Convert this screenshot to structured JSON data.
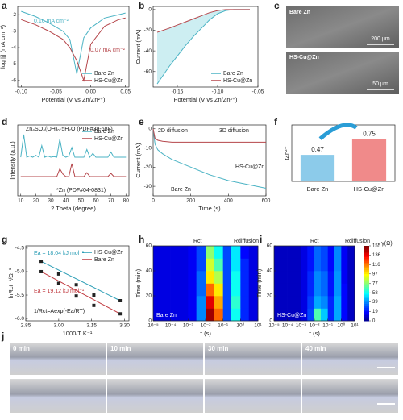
{
  "panel_labels": [
    "a",
    "b",
    "c",
    "d",
    "e",
    "f",
    "g",
    "h",
    "i",
    "j"
  ],
  "images": {
    "c": [
      {
        "label": "Bare Zn",
        "scale": "200 μm"
      },
      {
        "label": "HS-Cu@Zn",
        "scale": "50 μm"
      }
    ],
    "j": [
      "0 min",
      "10 min",
      "30 min",
      "40 min"
    ]
  },
  "chart_data": [
    {
      "type": "line",
      "xlabel": "Potential (V vs Zn/Zn²⁺)",
      "ylabel": "log |j| (mA cm⁻²)",
      "x": [
        -0.1,
        -0.08,
        -0.06,
        -0.04,
        -0.03,
        -0.02,
        -0.01,
        0.0,
        0.02,
        0.04,
        0.05
      ],
      "series": [
        {
          "name": "Bare Zn",
          "color": "#4bb3c4",
          "values": [
            -1.8,
            -2.1,
            -2.5,
            -3.0,
            -3.5,
            -5.6,
            -3.4,
            -2.8,
            -2.2,
            -2.0,
            -1.9
          ]
        },
        {
          "name": "HS-Cu@Zn",
          "color": "#b5454a",
          "values": [
            -2.3,
            -2.6,
            -3.0,
            -3.5,
            -4.0,
            -4.8,
            -6.0,
            -3.8,
            -2.7,
            -2.3,
            -2.2
          ]
        }
      ],
      "xlim": [
        -0.105,
        0.055
      ],
      "xticks": [
        {
          "value": -0.1,
          "label": "-0.10"
        },
        -0.05,
        {
          "value": 0,
          "label": "0.00"
        },
        0.05
      ],
      "ylim": [
        -6.4,
        -1.5
      ],
      "yticks": [
        -6,
        -5,
        -4,
        -3,
        -2
      ],
      "legend": "lower right",
      "annotations": [
        {
          "text": "0.16 mA cm⁻²",
          "color": "#4bb3c4"
        },
        {
          "text": "0.07 mA cm⁻²",
          "color": "#b5454a"
        }
      ]
    },
    {
      "type": "line",
      "xlabel": "Potential (V vs Zn/Zn²⁺)",
      "ylabel": "Current (mA)",
      "x": [
        -0.175,
        -0.16,
        -0.15,
        -0.14,
        -0.13,
        -0.12,
        -0.11,
        -0.1,
        -0.09,
        -0.08,
        -0.07,
        -0.06
      ],
      "series": [
        {
          "name": "Bare Zn",
          "color": "#4bb3c4",
          "values": [
            -72,
            -55,
            -45,
            -35,
            -26,
            -18,
            -10,
            -4,
            -1,
            0,
            0,
            0
          ]
        },
        {
          "name": "HS-Cu@Zn",
          "color": "#b5454a",
          "values": [
            -22,
            -18,
            -15,
            -12,
            -9,
            -6,
            -3,
            -1,
            0,
            0,
            0,
            0
          ]
        }
      ],
      "fill_between": "#cdeef2",
      "xlim": [
        -0.18,
        -0.05
      ],
      "xticks": [
        -0.15,
        {
          "value": -0.1,
          "label": "-0.10"
        },
        -0.05
      ],
      "ylim": [
        -75,
        3
      ],
      "yticks": [
        -60,
        -40,
        -20,
        0
      ],
      "legend": "lower right"
    },
    {
      "type": "line",
      "xlabel": "2 Theta (degree)",
      "ylabel": "Intensity (a.u.)",
      "x": [
        10,
        12,
        14,
        16,
        18,
        20,
        22,
        24,
        26,
        28,
        30,
        32,
        34,
        36,
        38,
        40,
        42,
        44,
        46,
        48,
        50,
        52,
        54,
        56,
        58,
        60,
        62,
        64,
        66,
        68,
        70,
        72,
        74,
        76,
        78,
        80
      ],
      "series": [
        {
          "name": "Bare Zn",
          "color": "#4bb3c4",
          "values": [
            6,
            9.5,
            6,
            6.2,
            6,
            6.3,
            6,
            7.8,
            6,
            6.2,
            6,
            6.1,
            6,
            8.8,
            6.3,
            6,
            6.2,
            7.5,
            6,
            6,
            6,
            6,
            7.2,
            6,
            6.6,
            6,
            6,
            6,
            6,
            6,
            6.8,
            6,
            6,
            6,
            6,
            6
          ]
        },
        {
          "name": "HS-Cu@Zn",
          "color": "#b5454a",
          "values": [
            3,
            3,
            3,
            3,
            3,
            3,
            3,
            3,
            3,
            3,
            3,
            3,
            3,
            4.2,
            3.4,
            3,
            3,
            5,
            3,
            3,
            3,
            3,
            3.6,
            3,
            3,
            3,
            3,
            3,
            3,
            3,
            3.5,
            3,
            3,
            3,
            3,
            3
          ]
        }
      ],
      "xlim": [
        8,
        82
      ],
      "xticks": [
        10,
        20,
        30,
        40,
        50,
        60,
        70,
        80
      ],
      "ylim": [
        0,
        11
      ],
      "yticks": [],
      "legend": "upper right",
      "annotations": [
        {
          "text": "Zn₄SO₄(OH)₆·5H₂O (PDF#39-688)",
          "color": "#222"
        },
        {
          "text": "*Zn (PDF#04-0831)",
          "color": "#222"
        }
      ]
    },
    {
      "type": "line",
      "xlabel": "Time (s)",
      "ylabel": "Current (mA)",
      "x": [
        0,
        10,
        25,
        50,
        100,
        150,
        200,
        300,
        400,
        500,
        600
      ],
      "series": [
        {
          "name": "Bare Zn",
          "color": "#4bb3c4",
          "values": [
            0,
            -8,
            -11,
            -13,
            -16,
            -18,
            -20,
            -24,
            -27,
            -29,
            -31
          ]
        },
        {
          "name": "HS-Cu@Zn",
          "color": "#b5454a",
          "values": [
            0,
            -5,
            -6,
            -6.5,
            -7,
            -7,
            -7,
            -7,
            -7,
            -7,
            -7
          ]
        }
      ],
      "xlim": [
        0,
        600
      ],
      "xticks": [
        0,
        200,
        400,
        600
      ],
      "ylim": [
        -35,
        2
      ],
      "yticks": [
        -30,
        -20,
        -10,
        0
      ],
      "annotations": [
        {
          "text": "2D diffusion",
          "color": "#222"
        },
        {
          "text": "3D diffusion",
          "color": "#222"
        },
        {
          "text": "HS-Cu@Zn",
          "color": "#222"
        },
        {
          "text": "Bare Zn",
          "color": "#222"
        }
      ]
    },
    {
      "type": "bar",
      "ylabel": "tZn²⁺",
      "categories": [
        "Bare Zn",
        "HS-Cu@Zn"
      ],
      "values": [
        0.47,
        0.75
      ],
      "colors": [
        "#8ccbea",
        "#f08a8a"
      ],
      "ylim": [
        0,
        1
      ],
      "yticks": []
    },
    {
      "type": "scatter",
      "xlabel": "1000/T K⁻¹",
      "ylabel": "lnRct⁻¹/Ω⁻¹",
      "series": [
        {
          "name": "HS-Cu@Zn",
          "color": "#2a9db5",
          "x": [
            2.92,
            3.0,
            3.08,
            3.16,
            3.28
          ],
          "values": [
            -4.78,
            -5.05,
            -5.28,
            -5.5,
            -5.62
          ]
        },
        {
          "name": "Bare Zn",
          "color": "#c0393f",
          "x": [
            2.92,
            3.0,
            3.08,
            3.16,
            3.28
          ],
          "values": [
            -5.0,
            -5.25,
            -5.52,
            -5.72,
            -5.9
          ]
        }
      ],
      "xlim": [
        2.85,
        3.32
      ],
      "xticks": [
        2.85,
        {
          "value": 3,
          "label": "3.00"
        },
        3.15,
        {
          "value": 3.3,
          "label": "3.30"
        }
      ],
      "ylim": [
        -6.05,
        -4.45
      ],
      "yticks": [
        -4.5,
        {
          "value": -5,
          "label": "-5.0"
        },
        -5.5,
        {
          "value": -6,
          "label": "-6.0"
        }
      ],
      "legend": "upper right",
      "annotations": [
        {
          "text": "Ea = 18.04 kJ mol⁻¹",
          "color": "#2a9db5"
        },
        {
          "text": "Ea = 19.12 kJ mol⁻¹",
          "color": "#c0393f"
        },
        {
          "text": "1/Rct=Aexp(-Ea/RT)",
          "color": "#222"
        }
      ]
    },
    {
      "type": "heatmap",
      "xlabel": "τ (s)",
      "ylabel": "Time (min)",
      "xlog": true,
      "xbins": [
        1e-05,
        0.0001,
        0.001,
        0.003,
        0.01,
        0.03,
        0.1,
        0.3,
        1,
        3,
        10
      ],
      "ybins": [
        0,
        10,
        20,
        30,
        40,
        50,
        60
      ],
      "z": [
        [
          15,
          15,
          18,
          40,
          150,
          120,
          30,
          60,
          25,
          15
        ],
        [
          15,
          15,
          18,
          40,
          140,
          110,
          30,
          65,
          25,
          15
        ],
        [
          15,
          15,
          18,
          35,
          120,
          100,
          30,
          60,
          25,
          15
        ],
        [
          15,
          15,
          18,
          35,
          100,
          85,
          30,
          60,
          25,
          15
        ],
        [
          15,
          15,
          18,
          30,
          90,
          70,
          30,
          55,
          25,
          15
        ],
        [
          15,
          15,
          18,
          30,
          80,
          60,
          30,
          55,
          20,
          15
        ]
      ],
      "zlim": [
        0,
        155
      ],
      "xlim": [
        1e-05,
        10
      ],
      "xticks": [
        {
          "value": 1e-05,
          "label": "10⁻⁵"
        },
        {
          "value": 0.0001,
          "label": "10⁻⁴"
        },
        {
          "value": 0.001,
          "label": "10⁻³"
        },
        {
          "value": 0.01,
          "label": "10⁻²"
        },
        {
          "value": 0.1,
          "label": "10⁻¹"
        },
        {
          "value": 1,
          "label": "10⁰"
        },
        {
          "value": 10,
          "label": "10¹"
        }
      ],
      "ylim": [
        0,
        60
      ],
      "yticks": [
        0,
        20,
        40,
        60
      ],
      "annotations": [
        {
          "text": "Rct",
          "color": "#222"
        },
        {
          "text": "Rdiffusion",
          "color": "#222"
        },
        {
          "text": "Bare Zn",
          "color": "#fff"
        }
      ]
    },
    {
      "type": "heatmap",
      "xlabel": "τ (s)",
      "ylabel": "Time (min)",
      "xlog": true,
      "xbins": [
        1e-05,
        0.0001,
        0.001,
        0.003,
        0.01,
        0.03,
        0.1,
        0.3,
        1,
        3,
        10
      ],
      "ybins": [
        0,
        10,
        20,
        30,
        40,
        50,
        60
      ],
      "z": [
        [
          10,
          10,
          15,
          30,
          70,
          50,
          25,
          45,
          20,
          10
        ],
        [
          10,
          10,
          15,
          28,
          45,
          40,
          25,
          45,
          20,
          10
        ],
        [
          10,
          10,
          15,
          25,
          40,
          35,
          22,
          42,
          20,
          10
        ],
        [
          10,
          10,
          15,
          25,
          40,
          35,
          22,
          42,
          18,
          10
        ],
        [
          10,
          10,
          15,
          22,
          35,
          30,
          20,
          40,
          18,
          10
        ],
        [
          10,
          10,
          15,
          22,
          35,
          30,
          20,
          40,
          18,
          10
        ]
      ],
      "zlim": [
        0,
        155
      ],
      "colorbar": true,
      "zlabel": "γ(Ω)",
      "zticks": [
        0,
        19,
        39,
        58,
        77,
        97,
        116,
        136,
        155
      ],
      "xlim": [
        1e-05,
        10
      ],
      "xticks": [
        {
          "value": 1e-05,
          "label": "10⁻⁵"
        },
        {
          "value": 0.0001,
          "label": "10⁻⁴"
        },
        {
          "value": 0.001,
          "label": "10⁻³"
        },
        {
          "value": 0.01,
          "label": "10⁻²"
        },
        {
          "value": 0.1,
          "label": "10⁻¹"
        },
        {
          "value": 1,
          "label": "10⁰"
        },
        {
          "value": 10,
          "label": "10¹"
        }
      ],
      "ylim": [
        0,
        60
      ],
      "yticks": [
        0,
        20,
        40,
        60
      ],
      "annotations": [
        {
          "text": "Rct",
          "color": "#222"
        },
        {
          "text": "Rdiffusion",
          "color": "#222"
        },
        {
          "text": "HS-Cu@Zn",
          "color": "#fff"
        }
      ]
    }
  ]
}
